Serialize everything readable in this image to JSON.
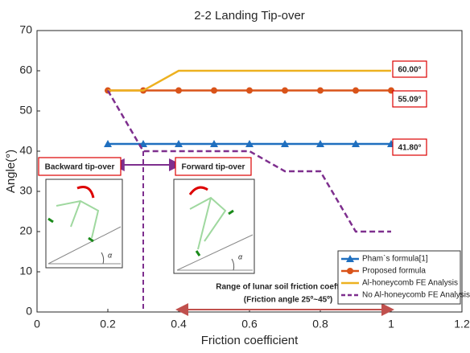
{
  "chart_data": {
    "type": "line",
    "title": "2-2 Landing Tip-over",
    "xlabel": "Friction coefficient",
    "ylabel": "Angle(°)",
    "x": [
      0.2,
      0.3,
      0.4,
      0.5,
      0.6,
      0.7,
      0.8,
      0.9,
      1
    ],
    "series": [
      {
        "name": "Pham`s formula[1]",
        "color": "#1f6fbf",
        "marker": "triangle",
        "linestyle": "solid",
        "values": [
          41.8,
          41.8,
          41.8,
          41.8,
          41.8,
          41.8,
          41.8,
          41.8,
          41.8
        ]
      },
      {
        "name": "Proposed formula",
        "color": "#d95319",
        "marker": "circle",
        "linestyle": "solid",
        "values": [
          55.09,
          55.09,
          55.09,
          55.09,
          55.09,
          55.09,
          55.09,
          55.09,
          55.09
        ]
      },
      {
        "name": "Al-honeycomb FE Analysis",
        "color": "#edb120",
        "marker": null,
        "linestyle": "solid",
        "values": [
          55.09,
          55.09,
          60,
          60,
          60,
          60,
          60,
          60,
          60
        ]
      },
      {
        "name": "No Al-honeycomb FE Analysis",
        "color": "#7e2f8e",
        "marker": null,
        "linestyle": "dashed",
        "values": [
          55.09,
          40,
          40,
          40,
          40,
          35,
          35,
          20,
          20
        ]
      }
    ],
    "xlim": [
      0,
      1.2
    ],
    "xticks": [
      0,
      0.2,
      0.4,
      0.6,
      0.8,
      1,
      1.2
    ],
    "ylim": [
      0,
      70
    ],
    "yticks": [
      0,
      10,
      20,
      30,
      40,
      50,
      60,
      70
    ],
    "grid": false,
    "legend": "lower right",
    "annotations": [
      "60.00°",
      "55.09°",
      "41.80°",
      "Backward tip-over",
      "Forward tip-over",
      "Range of lunar soil friction coefficient",
      "(Friction angle 25º~45º)"
    ],
    "inset_labels": [
      "α",
      "α"
    ]
  }
}
